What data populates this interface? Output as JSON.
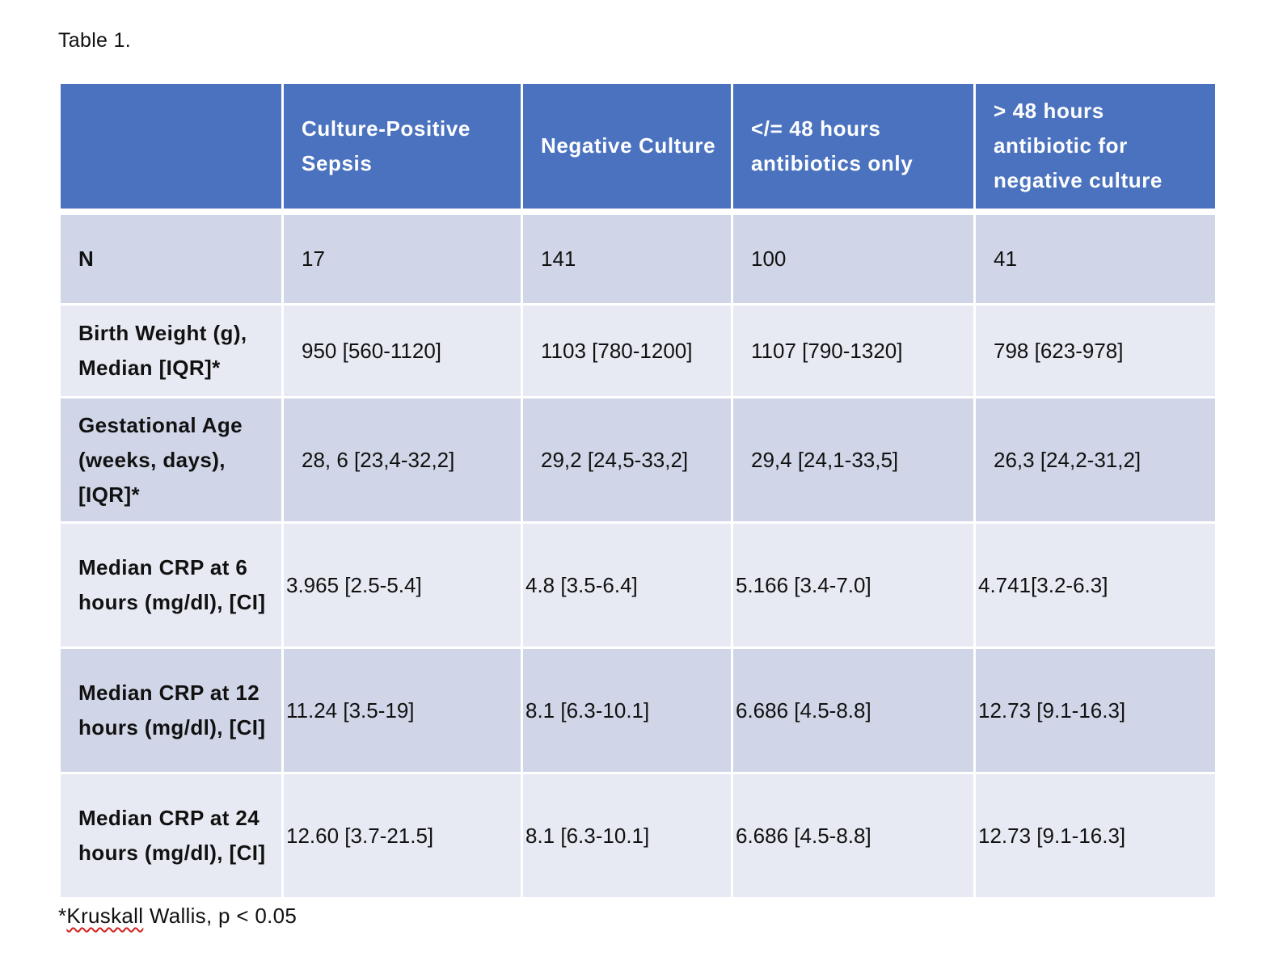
{
  "caption": "Table 1.",
  "table": {
    "headers": [
      "",
      "Culture-Positive Sepsis",
      "Negative Culture",
      "</= 48 hours antibiotics only",
      "> 48 hours antibiotic for negative culture"
    ],
    "rows": [
      {
        "label": "N",
        "values": [
          "17",
          "141",
          "100",
          "41"
        ]
      },
      {
        "label": "Birth Weight (g), Median [IQR]*",
        "values": [
          "950 [560-1120]",
          "1103 [780-1200]",
          "1107 [790-1320]",
          "798 [623-978]"
        ]
      },
      {
        "label": "Gestational Age (weeks, days), [IQR]*",
        "values": [
          "28, 6 [23,4-32,2]",
          "29,2 [24,5-33,2]",
          "29,4 [24,1-33,5]",
          "26,3 [24,2-31,2]"
        ]
      },
      {
        "label": "Median CRP at 6 hours (mg/dl), [CI]",
        "values": [
          "3.965 [2.5-5.4]",
          "4.8 [3.5-6.4]",
          "5.166 [3.4-7.0]",
          "4.741[3.2-6.3]"
        ]
      },
      {
        "label": "Median CRP at 12 hours (mg/dl), [CI]",
        "values": [
          "11.24 [3.5-19]",
          "8.1 [6.3-10.1]",
          "6.686 [4.5-8.8]",
          "12.73 [9.1-16.3]"
        ]
      },
      {
        "label": "Median CRP at 24 hours (mg/dl), [CI]",
        "values": [
          "12.60 [3.7-21.5]",
          "8.1 [6.3-10.1]",
          "6.686 [4.5-8.8]",
          "12.73 [9.1-16.3]"
        ]
      }
    ]
  },
  "footnote": {
    "prefix": "*",
    "flagged_word": "Kruskall",
    "rest": " Wallis, p < 0.05"
  }
}
